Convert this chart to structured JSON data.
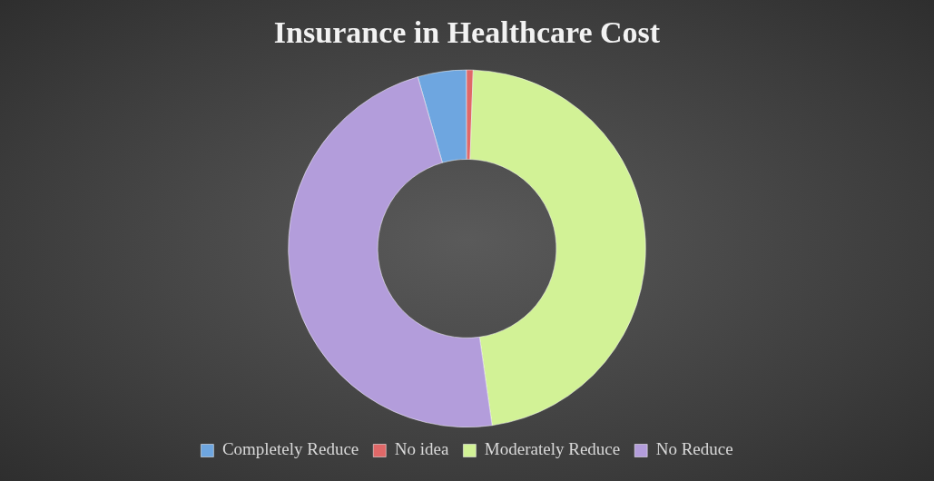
{
  "chart_data": {
    "type": "donut",
    "title": "Insurance in Healthcare Cost",
    "categories": [
      "Completely Reduce",
      "No idea",
      "Moderately Reduce",
      "No Reduce"
    ],
    "values": [
      4.4,
      0.6,
      47.2,
      47.8
    ],
    "colors": [
      "#6ea6e0",
      "#e06868",
      "#d2f296",
      "#b39ddb"
    ],
    "legend": "bottom"
  }
}
